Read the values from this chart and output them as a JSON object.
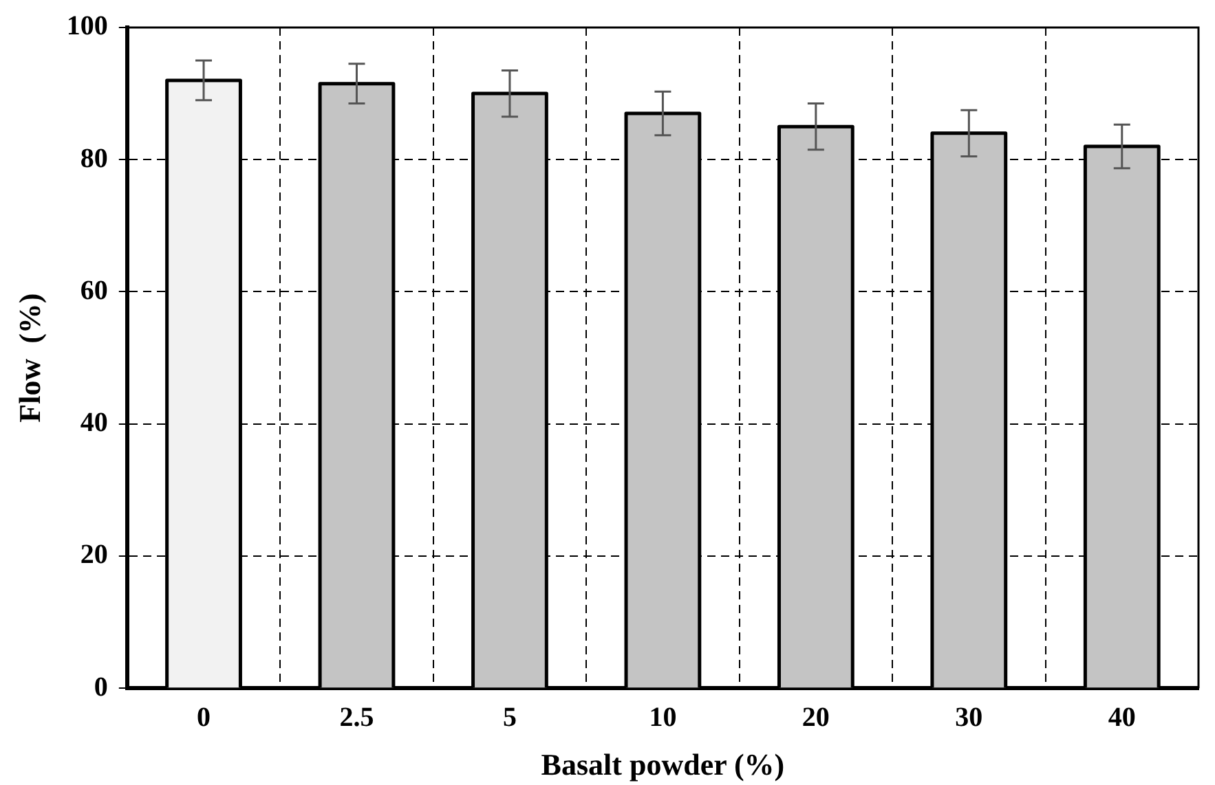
{
  "chart_data": {
    "type": "bar",
    "xlabel": "Basalt powder (%)",
    "ylabel": "Flow  (%)",
    "categories": [
      "0",
      "2.5",
      "5",
      "10",
      "20",
      "30",
      "40"
    ],
    "values": [
      92,
      91.5,
      90,
      87,
      85,
      84,
      82
    ],
    "errors": [
      3,
      3,
      3.5,
      3.3,
      3.5,
      3.5,
      3.3
    ],
    "colors": [
      "#f2f2f2",
      "#c4c4c4",
      "#c4c4c4",
      "#c4c4c4",
      "#c4c4c4",
      "#c4c4c4",
      "#c4c4c4"
    ],
    "ylim": [
      0,
      100
    ],
    "yticks": [
      0,
      20,
      40,
      60,
      80,
      100
    ],
    "grid": true
  }
}
